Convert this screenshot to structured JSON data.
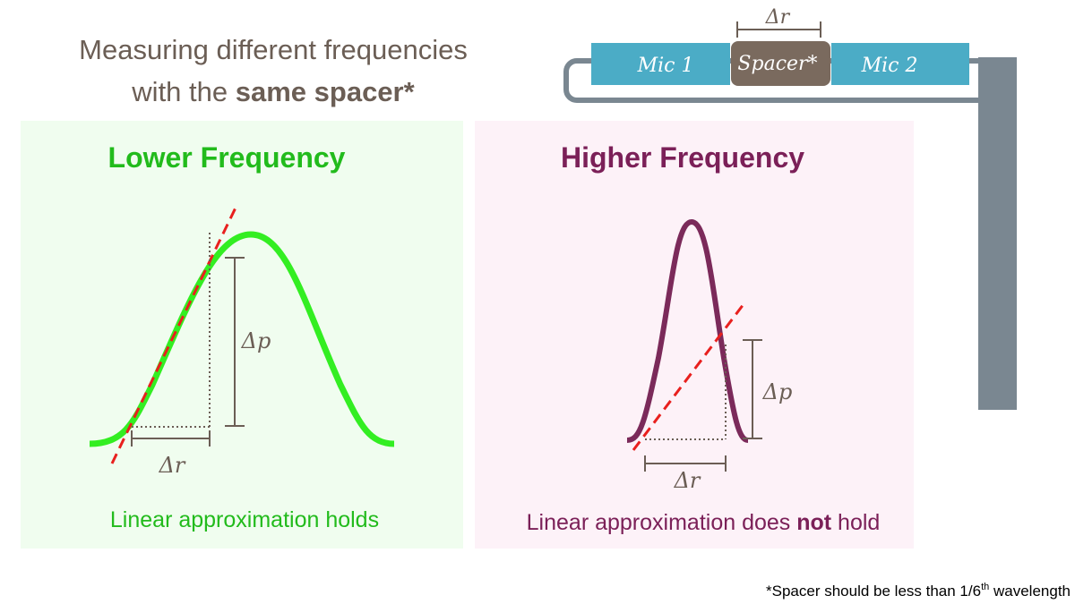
{
  "header": {
    "title_line1": "Measuring different frequencies",
    "title_line2_pre": "with the ",
    "title_line2_bold": "same spacer*"
  },
  "probe": {
    "spacing_label": "Δr",
    "mic1": "Mic 1",
    "spacer": "Spacer*",
    "mic2": "Mic 2"
  },
  "left_panel": {
    "title": "Lower Frequency",
    "dp_label": "Δp",
    "dr_label": "Δr",
    "caption": "Linear approximation holds"
  },
  "right_panel": {
    "title": "Higher Frequency",
    "dp_label": "Δp",
    "dr_label": "Δr",
    "caption_pre": "Linear approximation does ",
    "caption_bold": "not",
    "caption_post": " hold"
  },
  "footnote": {
    "pre": "*Spacer should be less than 1/6",
    "sup": "th",
    "post": " wavelength"
  }
}
